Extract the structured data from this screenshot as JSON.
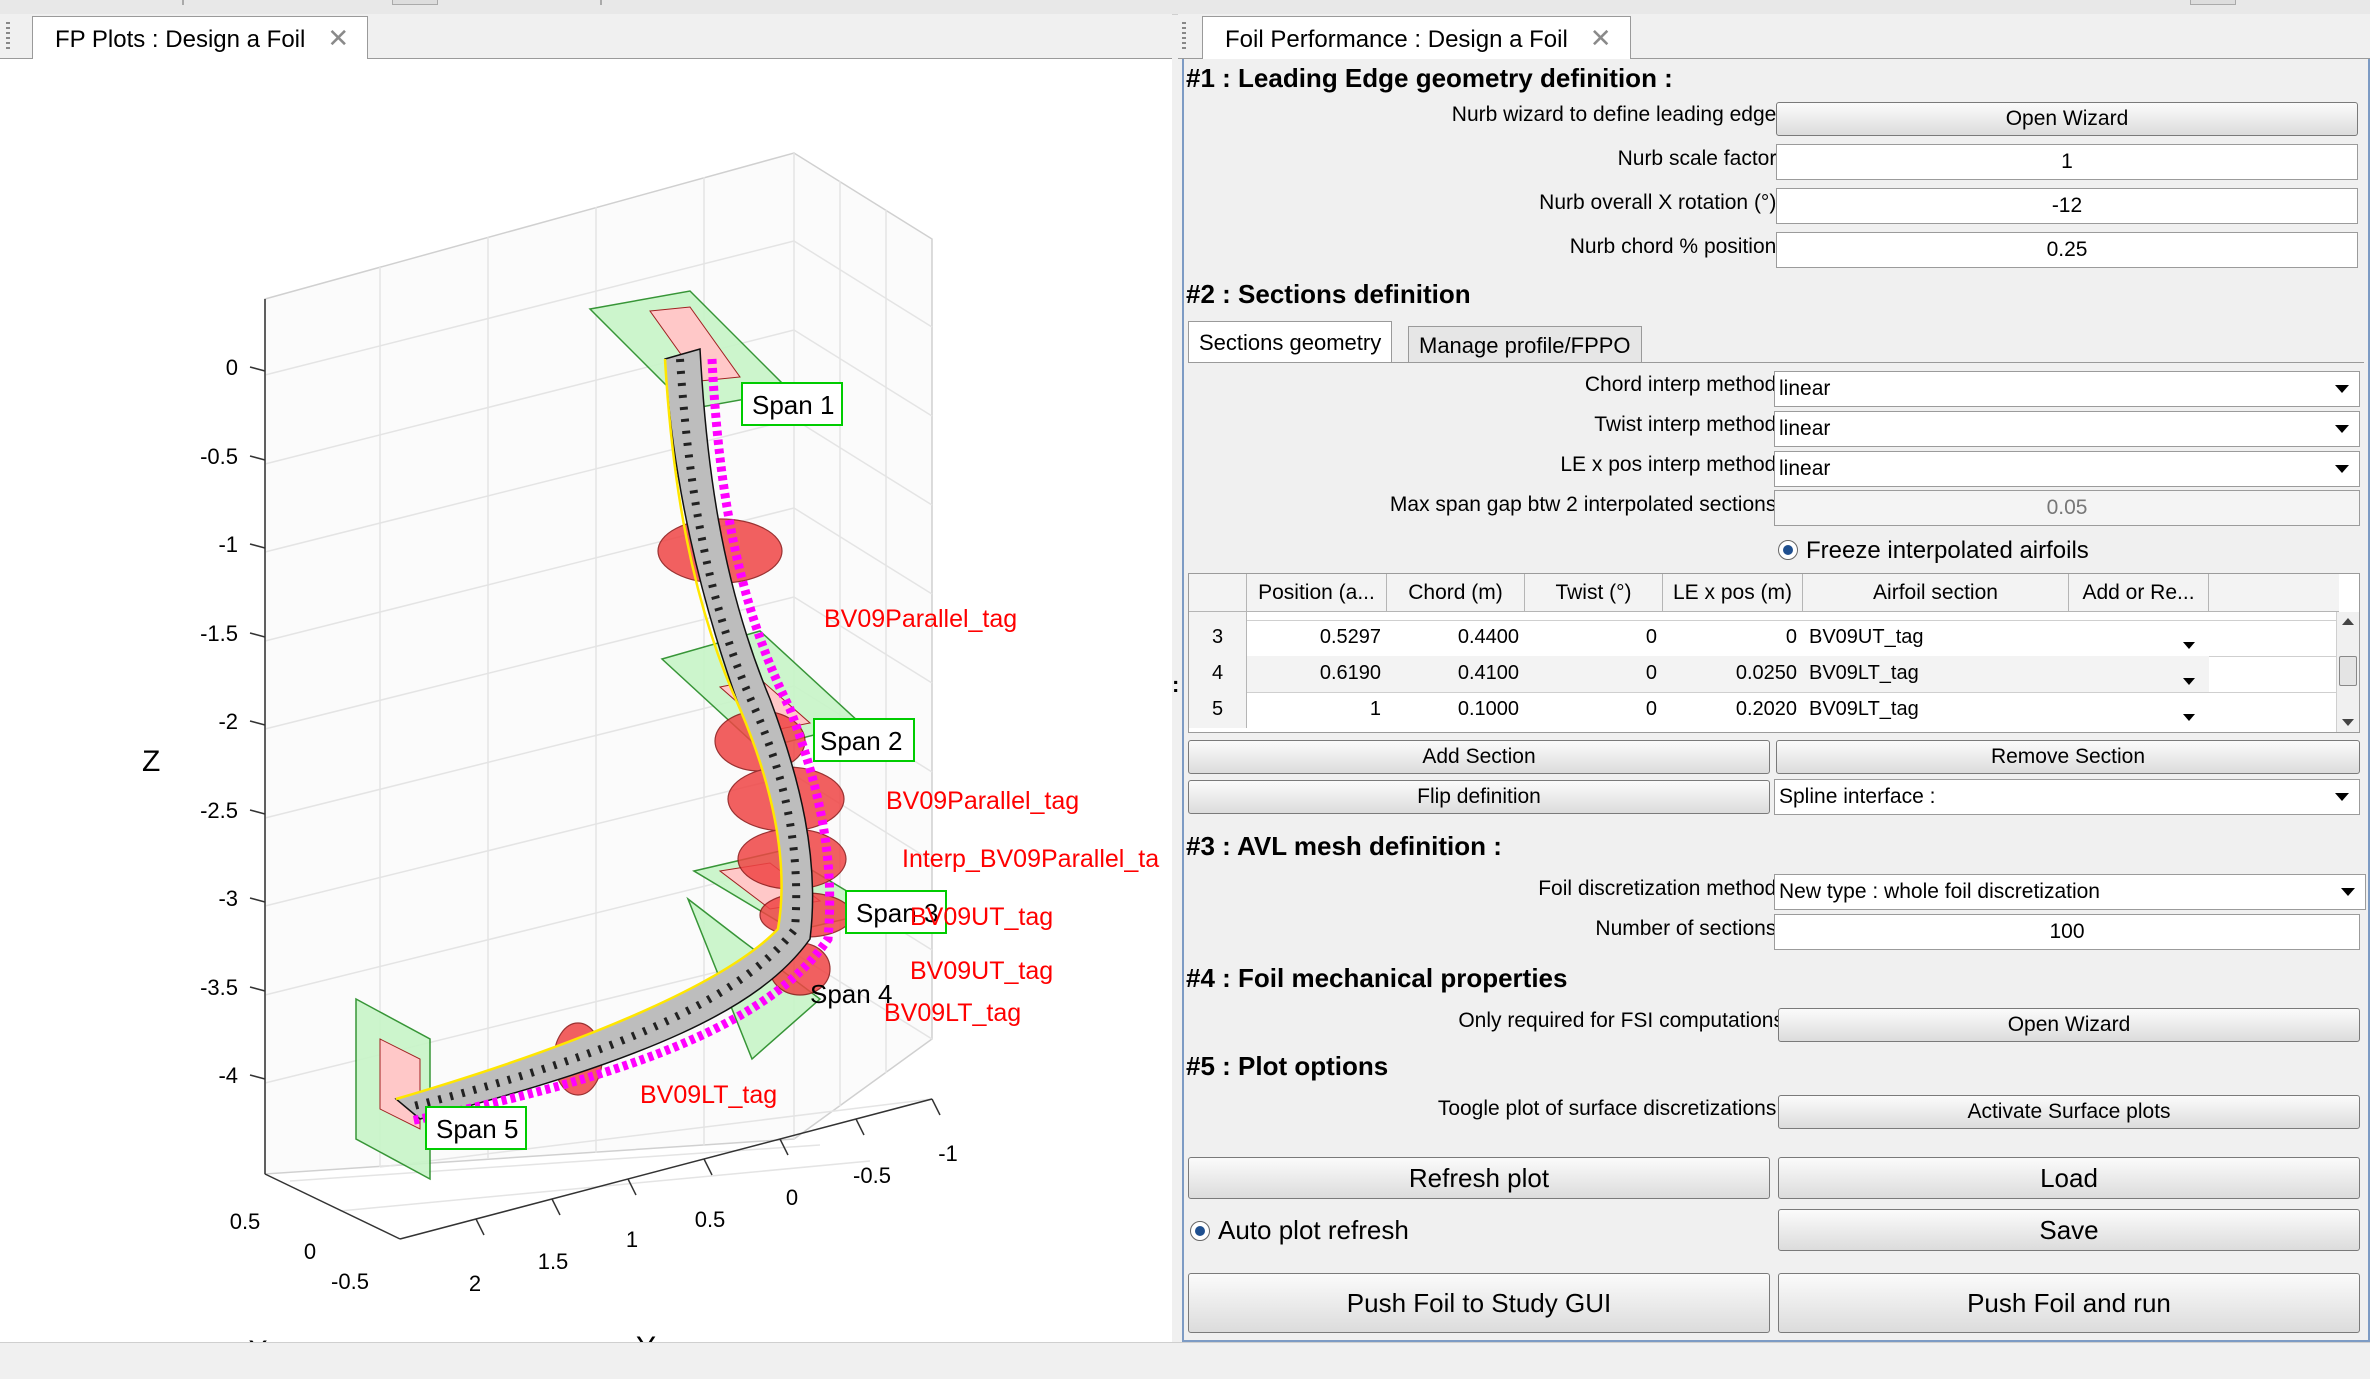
{
  "left_tab": {
    "title": "FP Plots : Design a Foil"
  },
  "right_tab": {
    "title": "Foil Performance : Design a Foil"
  },
  "plot": {
    "z_ticks": [
      "0",
      "-0.5",
      "-1",
      "-1.5",
      "-2",
      "-2.5",
      "-3",
      "-3.5",
      "-4"
    ],
    "y_ticks": [
      "-1",
      "-0.5",
      "0",
      "0.5",
      "1",
      "1.5",
      "2"
    ],
    "x_ticks": [
      "0.5",
      "0",
      "-0.5"
    ],
    "z_label": "Z",
    "y_label": "Y",
    "x_label": "X",
    "span_labels": [
      "Span 1",
      "Span 2",
      "Span 3",
      "Span 4",
      "Span 5"
    ],
    "section_labels": [
      "BV09Parallel_tag",
      "BV09Parallel_tag",
      "Interp_BV09Parallel_ta",
      "BV09UT_tag",
      "BV09UT_tag",
      "BV09LT_tag",
      "BV09LT_tag"
    ],
    "colors": {
      "section_label": "#ff0000",
      "span_box": "#00cc00",
      "centerline": "#ff00ff",
      "leading_edge": "#ffff00"
    }
  },
  "s1": {
    "title": "#1 : Leading Edge geometry definition :",
    "wizard_label": "Nurb wizard to define leading edge :",
    "wizard_btn": "Open Wizard",
    "scale_label": "Nurb scale factor :",
    "scale_value": "1",
    "rot_label": "Nurb overall X rotation (°) :",
    "rot_value": "-12",
    "chord_label": "Nurb chord % position :",
    "chord_value": "0.25"
  },
  "s2": {
    "title": "#2 : Sections definition",
    "tab_geometry": "Sections geometry",
    "tab_manage": "Manage profile/FPPO",
    "chord_interp_label": "Chord interp method :",
    "chord_interp_value": "linear",
    "twist_interp_label": "Twist interp method :",
    "twist_interp_value": "linear",
    "lex_interp_label": "LE x pos interp method :",
    "lex_interp_value": "linear",
    "gap_label": "Max span gap btw 2 interpolated sections :",
    "gap_value": "0.05",
    "freeze_label": "Freeze interpolated airfoils",
    "table": {
      "headers": [
        "Position (a...",
        "Chord (m)",
        "Twist (°)",
        "LE x pos (m)",
        "Airfoil section",
        "Add or Re..."
      ],
      "rows": [
        {
          "idx": "3",
          "pos": "0.5297",
          "chord": "0.4400",
          "twist": "0",
          "lex": "0",
          "airfoil": "BV09UT_tag"
        },
        {
          "idx": "4",
          "pos": "0.6190",
          "chord": "0.4100",
          "twist": "0",
          "lex": "0.0250",
          "airfoil": "BV09LT_tag"
        },
        {
          "idx": "5",
          "pos": "1",
          "chord": "0.1000",
          "twist": "0",
          "lex": "0.2020",
          "airfoil": "BV09LT_tag"
        }
      ]
    },
    "add_section": "Add Section",
    "remove_section": "Remove Section",
    "flip": "Flip definition",
    "spline": "Spline interface :"
  },
  "s3": {
    "title": "#3 : AVL mesh definition :",
    "disc_label": "Foil discretization method :",
    "disc_value": "New type : whole foil discretization",
    "nsec_label": "Number of sections :",
    "nsec_value": "100"
  },
  "s4": {
    "title": "#4 : Foil mechanical properties",
    "fsi_label": "Only required for FSI computations",
    "fsi_btn": "Open Wizard"
  },
  "s5": {
    "title": "#5 : Plot options",
    "surf_label": "Toogle plot of surface discretizations :",
    "surf_btn": "Activate Surface plots"
  },
  "actions": {
    "refresh": "Refresh plot",
    "load": "Load",
    "auto_refresh": "Auto plot refresh",
    "save": "Save",
    "push_study": "Push Foil to Study GUI",
    "push_run": "Push Foil and run"
  }
}
